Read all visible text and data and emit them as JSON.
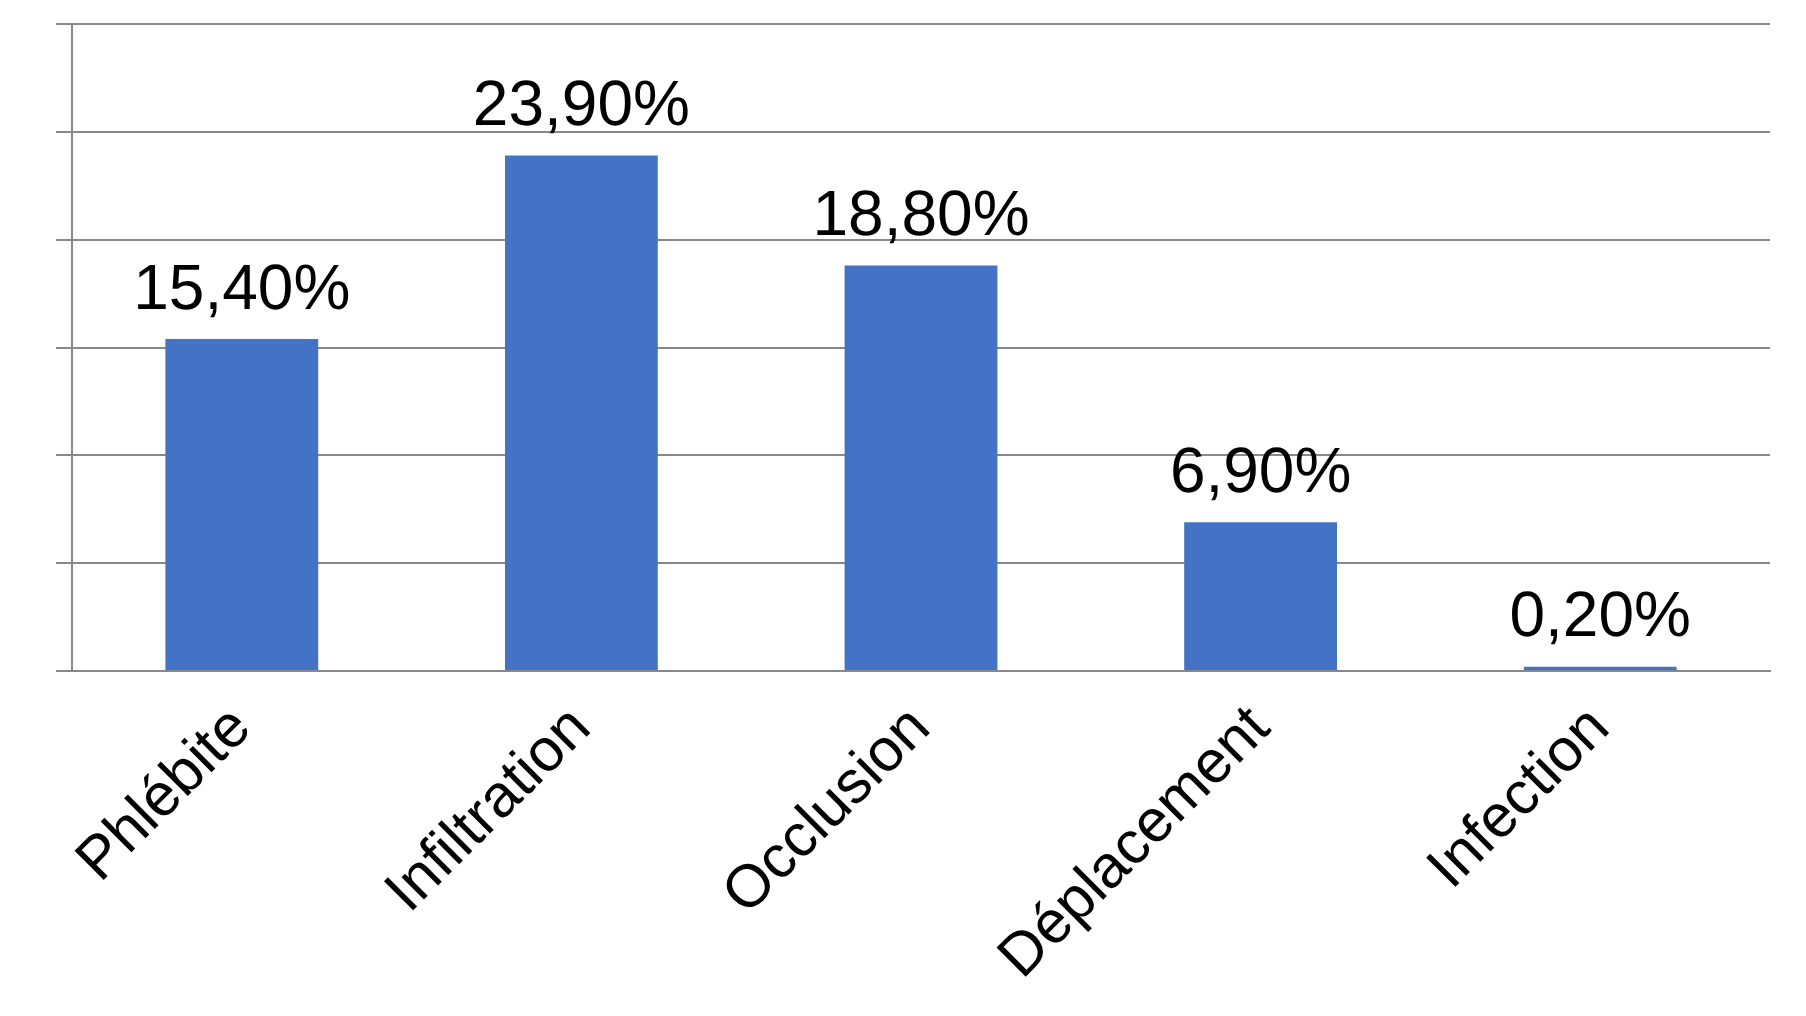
{
  "chart_data": {
    "type": "bar",
    "categories": [
      "Phlébite",
      "Infiltration",
      "Occlusion",
      "Déplacement",
      "Infection"
    ],
    "values": [
      15.4,
      23.9,
      18.8,
      6.9,
      0.2
    ],
    "value_labels": [
      "15,40%",
      "23,90%",
      "18,80%",
      "6,90%",
      "0,20%"
    ],
    "color": "#4472c4",
    "ylim": [
      0,
      30
    ],
    "yticks": [
      {
        "value": 0,
        "label": null
      },
      {
        "value": 5,
        "label": null
      },
      {
        "value": 10,
        "label": null
      },
      {
        "value": 15,
        "label": null
      },
      {
        "value": 20,
        "label": null
      },
      {
        "value": 25,
        "label": null
      },
      {
        "value": 30,
        "label": null
      }
    ],
    "tick_labels": "x",
    "grid": "y"
  }
}
